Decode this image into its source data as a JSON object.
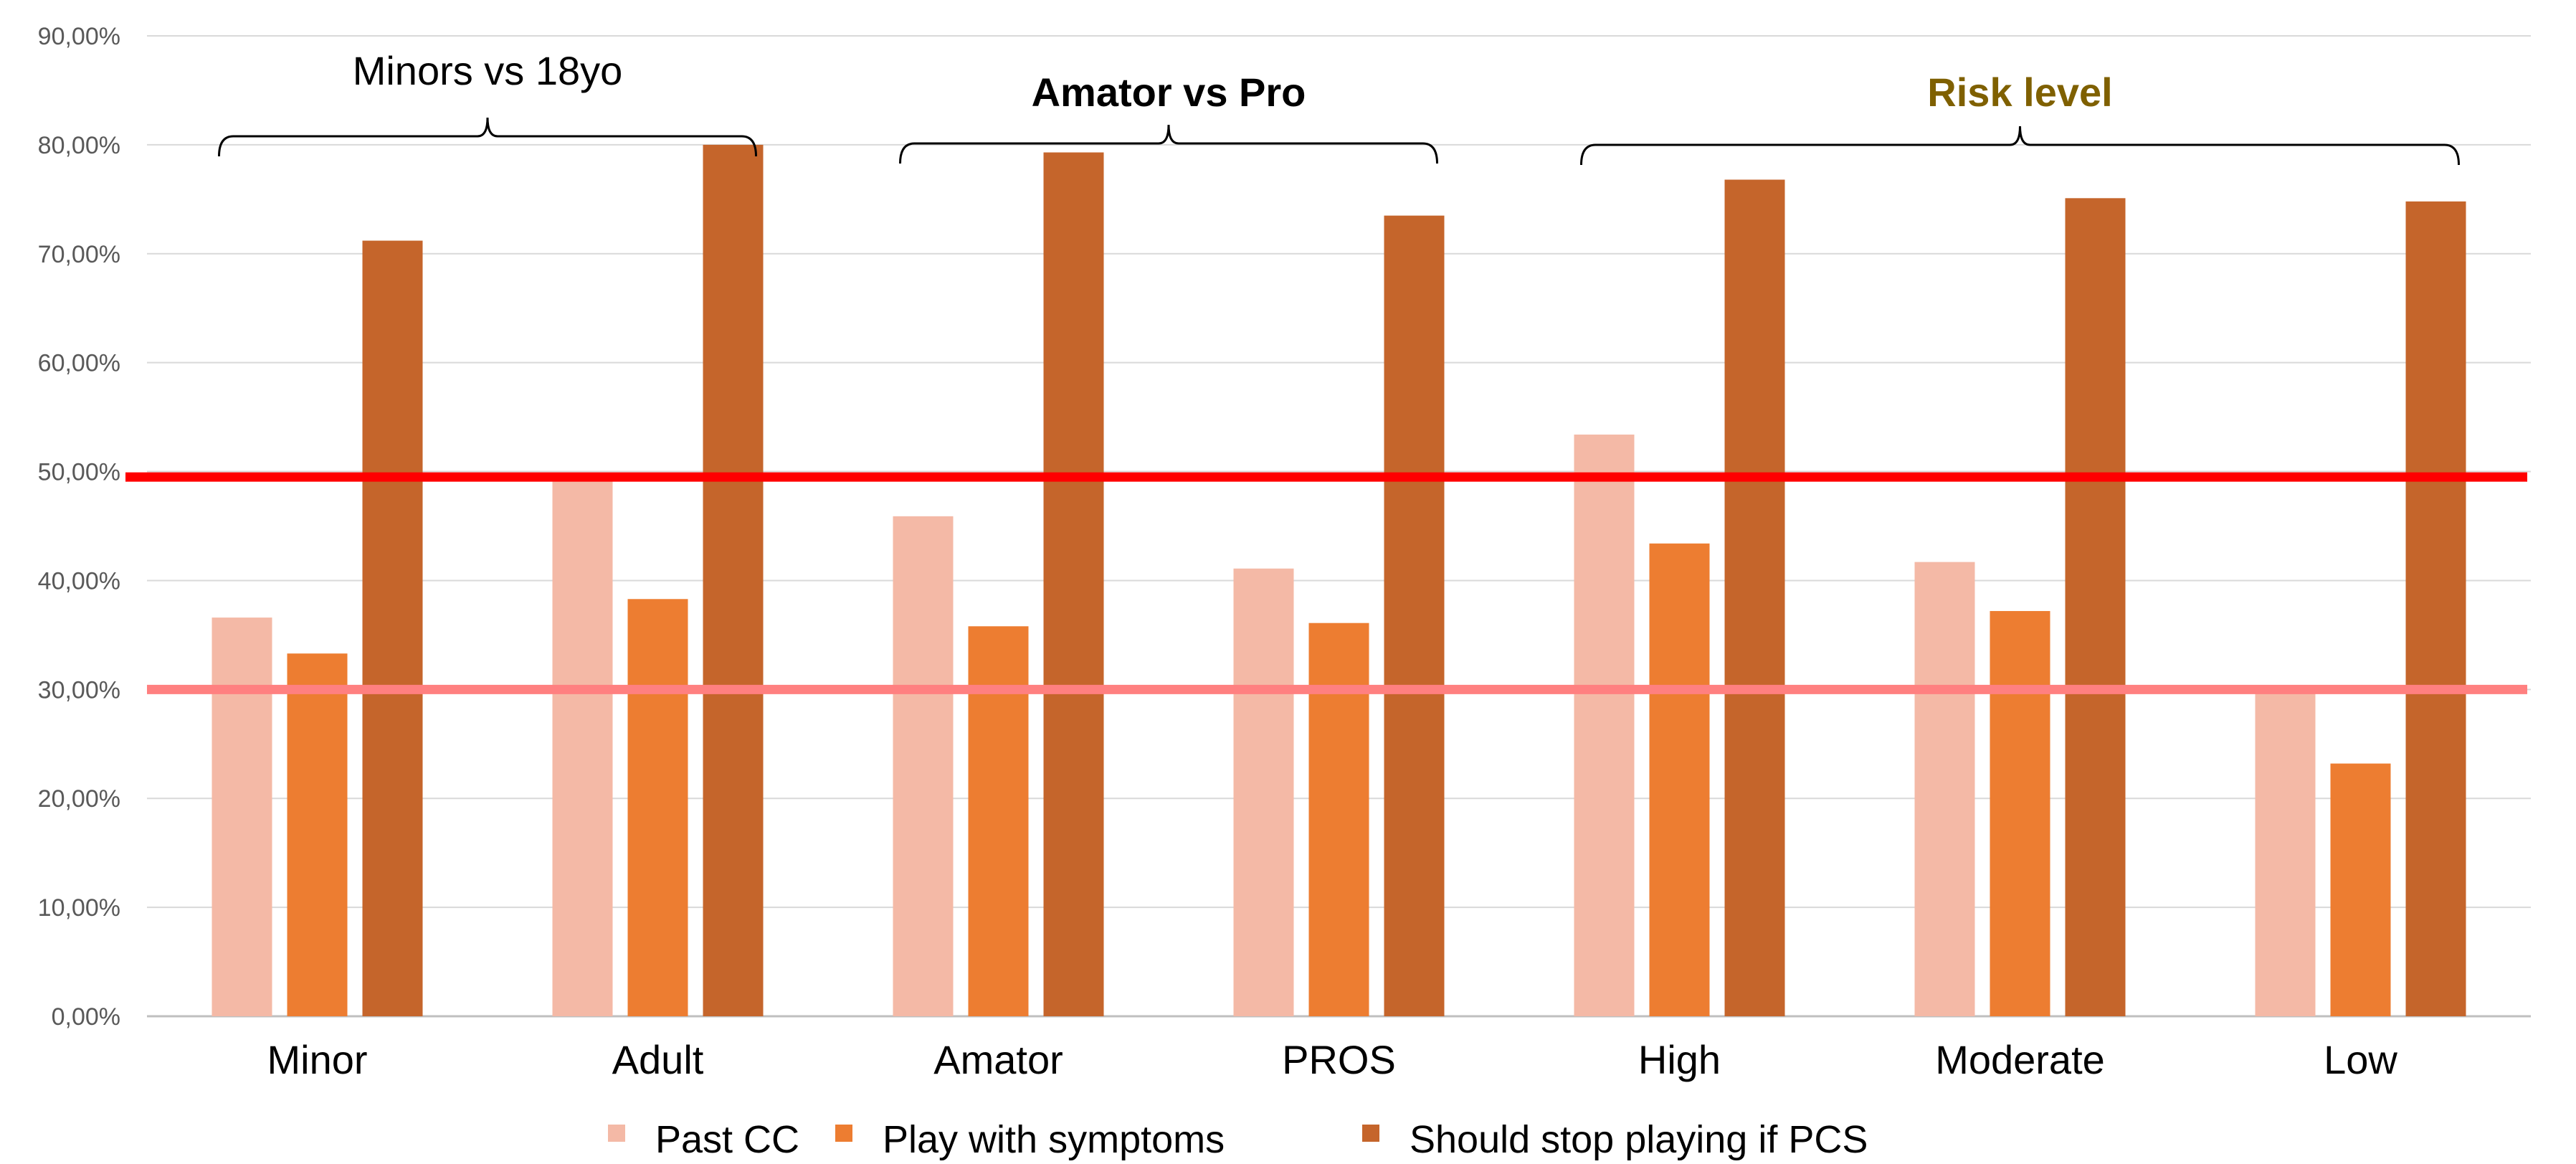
{
  "chart_data": {
    "type": "bar",
    "categories": [
      "Minor",
      "Adult",
      "Amator",
      "PROS",
      "High",
      "Moderate",
      "Low"
    ],
    "series": [
      {
        "name": "Past CC",
        "color": "#F4B9A6",
        "values": [
          36.6,
          49.5,
          45.9,
          41.1,
          53.4,
          41.7,
          30.0
        ]
      },
      {
        "name": "Play with symptoms",
        "color": "#ED7D31",
        "values": [
          33.3,
          38.3,
          35.8,
          36.1,
          43.4,
          37.2,
          23.2
        ]
      },
      {
        "name": "Should stop playing if PCS",
        "color": "#C5652B",
        "values": [
          71.2,
          80.0,
          79.3,
          73.5,
          76.8,
          75.1,
          74.8
        ]
      }
    ],
    "y_ticks": [
      "0,00%",
      "10,00%",
      "20,00%",
      "30,00%",
      "40,00%",
      "50,00%",
      "60,00%",
      "70,00%",
      "80,00%",
      "90,00%"
    ],
    "ylim": [
      0,
      90
    ],
    "grid": true,
    "legend_position": "bottom",
    "reference_lines": [
      {
        "value": 49.5,
        "color": "#FF0000"
      },
      {
        "value": 30.0,
        "color": "#FF8080"
      }
    ],
    "groups": [
      {
        "label": "Minors vs 18yo",
        "categories": [
          "Minor",
          "Adult"
        ],
        "color": "#000000",
        "bold": false
      },
      {
        "label": "Amator vs Pro",
        "categories": [
          "Amator",
          "PROS"
        ],
        "color": "#000000",
        "bold": true
      },
      {
        "label": "Risk level",
        "categories": [
          "High",
          "Moderate",
          "Low"
        ],
        "color": "#7F6000",
        "bold": true
      }
    ]
  }
}
